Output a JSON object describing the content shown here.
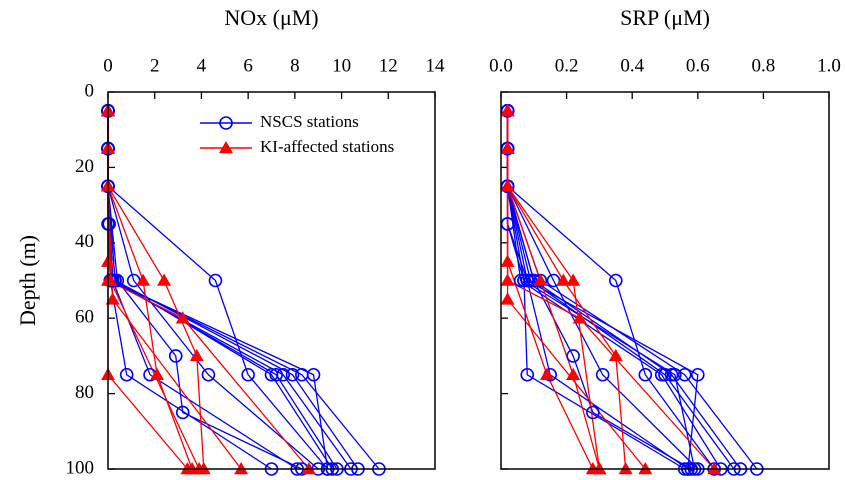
{
  "chart_data": [
    {
      "type": "line",
      "title": "NOx (μM)",
      "ylabel": "Depth (m)",
      "y_inverted": true,
      "x_axis": "top",
      "ytick_labels": true,
      "legend": "top-right",
      "xlim": [
        0,
        14
      ],
      "xticks": [
        0,
        2,
        4,
        6,
        8,
        10,
        12,
        14
      ],
      "ylim": [
        0,
        100
      ],
      "yticks": [
        0,
        20,
        40,
        60,
        80,
        100
      ],
      "series": [
        {
          "name": "NSCS stations",
          "color": "#0000ff",
          "marker": "circle",
          "profiles": [
            {
              "x": [
                0,
                0,
                0,
                0,
                0.1,
                0.8,
                7.0
              ],
              "y": [
                5,
                15,
                25,
                35,
                50,
                75,
                100
              ]
            },
            {
              "x": [
                0,
                0,
                0,
                0.05,
                0.2,
                1.8,
                8.1
              ],
              "y": [
                5,
                15,
                25,
                35,
                50,
                75,
                100
              ]
            },
            {
              "x": [
                0,
                0,
                0,
                0.4,
                2.9,
                3.2,
                8.3
              ],
              "y": [
                5,
                15,
                25,
                50,
                70,
                85,
                100
              ]
            },
            {
              "x": [
                0,
                0,
                0,
                1.1,
                4.3,
                9.0
              ],
              "y": [
                5,
                15,
                25,
                50,
                75,
                100
              ]
            },
            {
              "x": [
                0,
                0,
                0,
                4.6,
                6.0,
                9.4
              ],
              "y": [
                5,
                15,
                25,
                50,
                75,
                100
              ]
            },
            {
              "x": [
                0,
                0,
                0,
                0.3,
                7.0,
                9.6
              ],
              "y": [
                5,
                15,
                25,
                50,
                75,
                100
              ]
            },
            {
              "x": [
                0,
                0,
                0,
                0.2,
                7.2,
                9.8
              ],
              "y": [
                5,
                15,
                25,
                50,
                75,
                100
              ]
            },
            {
              "x": [
                0,
                0,
                0,
                0.1,
                7.5,
                10.4
              ],
              "y": [
                5,
                15,
                25,
                50,
                75,
                100
              ]
            },
            {
              "x": [
                0,
                0,
                0,
                0.3,
                7.9,
                10.7
              ],
              "y": [
                5,
                15,
                25,
                50,
                75,
                100
              ]
            },
            {
              "x": [
                0,
                0,
                0,
                0.2,
                8.3,
                11.6
              ],
              "y": [
                5,
                15,
                25,
                50,
                75,
                100
              ]
            },
            {
              "x": [
                0,
                0,
                0,
                0.1,
                8.8,
                9.4
              ],
              "y": [
                5,
                15,
                25,
                50,
                75,
                100
              ]
            }
          ]
        },
        {
          "name": "KI-affected stations",
          "color": "#ff0000",
          "marker": "triangle",
          "profiles": [
            {
              "x": [
                0,
                0,
                0,
                0,
                0,
                3.4
              ],
              "y": [
                5,
                15,
                25,
                45,
                75,
                100
              ]
            },
            {
              "x": [
                0,
                0,
                0,
                1.5,
                2.1,
                3.6
              ],
              "y": [
                5,
                15,
                25,
                50,
                75,
                100
              ]
            },
            {
              "x": [
                0,
                0,
                0,
                2.4,
                3.8,
                4.1
              ],
              "y": [
                5,
                15,
                25,
                50,
                70,
                100
              ]
            },
            {
              "x": [
                0,
                0,
                0,
                0.2,
                5.7
              ],
              "y": [
                5,
                15,
                25,
                55,
                100
              ]
            },
            {
              "x": [
                0,
                0,
                0,
                0,
                3.2,
                8.6
              ],
              "y": [
                5,
                15,
                25,
                50,
                60,
                100
              ]
            },
            {
              "x": [
                0,
                0,
                0,
                0.1,
                3.9
              ],
              "y": [
                5,
                15,
                25,
                50,
                100
              ]
            }
          ]
        }
      ]
    },
    {
      "type": "line",
      "title": "SRP (μM)",
      "y_inverted": true,
      "x_axis": "top",
      "ytick_labels": false,
      "xlim": [
        0,
        1
      ],
      "xticks": [
        {
          "value": 0,
          "label": "0.0"
        },
        0.2,
        0.4,
        0.6,
        0.8,
        {
          "value": 1,
          "label": "1.0"
        }
      ],
      "ylim": [
        0,
        100
      ],
      "yticks": [
        0,
        20,
        40,
        60,
        80,
        100
      ],
      "series": [
        {
          "color": "#0000ff",
          "marker": "circle",
          "profiles": [
            {
              "x": [
                0.02,
                0.02,
                0.02,
                0.02,
                0.07,
                0.08,
                0.56
              ],
              "y": [
                5,
                15,
                25,
                35,
                50,
                75,
                100
              ]
            },
            {
              "x": [
                0.02,
                0.02,
                0.02,
                0.02,
                0.08,
                0.15,
                0.57
              ],
              "y": [
                5,
                15,
                25,
                35,
                50,
                75,
                100
              ]
            },
            {
              "x": [
                0.02,
                0.02,
                0.02,
                0.1,
                0.22,
                0.28,
                0.58
              ],
              "y": [
                5,
                15,
                25,
                50,
                70,
                85,
                100
              ]
            },
            {
              "x": [
                0.02,
                0.02,
                0.02,
                0.16,
                0.31,
                0.6
              ],
              "y": [
                5,
                15,
                25,
                50,
                75,
                100
              ]
            },
            {
              "x": [
                0.02,
                0.02,
                0.02,
                0.35,
                0.44,
                0.65
              ],
              "y": [
                5,
                15,
                25,
                50,
                75,
                100
              ]
            },
            {
              "x": [
                0.02,
                0.02,
                0.02,
                0.06,
                0.49,
                0.67
              ],
              "y": [
                5,
                15,
                25,
                50,
                75,
                100
              ]
            },
            {
              "x": [
                0.02,
                0.02,
                0.02,
                0.09,
                0.5,
                0.71
              ],
              "y": [
                5,
                15,
                25,
                50,
                75,
                100
              ]
            },
            {
              "x": [
                0.02,
                0.02,
                0.02,
                0.1,
                0.52,
                0.73
              ],
              "y": [
                5,
                15,
                25,
                50,
                75,
                100
              ]
            },
            {
              "x": [
                0.02,
                0.02,
                0.02,
                0.12,
                0.56,
                0.78
              ],
              "y": [
                5,
                15,
                25,
                50,
                75,
                100
              ]
            },
            {
              "x": [
                0.02,
                0.02,
                0.02,
                0.08,
                0.6,
                0.57
              ],
              "y": [
                5,
                15,
                25,
                50,
                75,
                100
              ]
            },
            {
              "x": [
                0.02,
                0.02,
                0.02,
                0.07,
                0.53,
                0.59
              ],
              "y": [
                5,
                15,
                25,
                50,
                75,
                100
              ]
            }
          ]
        },
        {
          "color": "#ff0000",
          "marker": "triangle",
          "profiles": [
            {
              "x": [
                0.02,
                0.02,
                0.02,
                0.02,
                0.14,
                0.28
              ],
              "y": [
                5,
                15,
                25,
                45,
                75,
                100
              ]
            },
            {
              "x": [
                0.02,
                0.02,
                0.02,
                0.12,
                0.22,
                0.3
              ],
              "y": [
                5,
                15,
                25,
                50,
                75,
                100
              ]
            },
            {
              "x": [
                0.02,
                0.02,
                0.02,
                0.19,
                0.35,
                0.38
              ],
              "y": [
                5,
                15,
                25,
                50,
                70,
                100
              ]
            },
            {
              "x": [
                0.02,
                0.02,
                0.02,
                0.02,
                0.44
              ],
              "y": [
                5,
                15,
                25,
                55,
                100
              ]
            },
            {
              "x": [
                0.02,
                0.02,
                0.02,
                0.02,
                0.24,
                0.65
              ],
              "y": [
                5,
                15,
                25,
                50,
                60,
                100
              ]
            },
            {
              "x": [
                0.02,
                0.02,
                0.02,
                0.22,
                0.3
              ],
              "y": [
                5,
                15,
                25,
                50,
                100
              ]
            }
          ]
        }
      ]
    }
  ]
}
